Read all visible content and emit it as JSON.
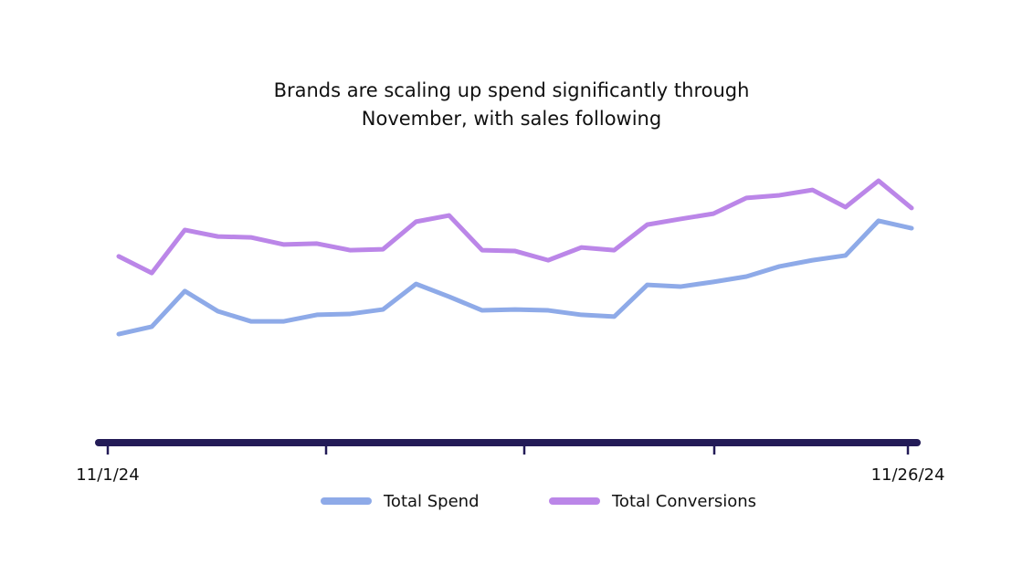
{
  "chart_data": {
    "type": "line",
    "title": "Brands are scaling up spend significantly through\nNovember, with sales following",
    "categories": [
      "11/1/24",
      null,
      null,
      null,
      null,
      null,
      null,
      null,
      null,
      null,
      null,
      null,
      null,
      null,
      null,
      null,
      null,
      null,
      null,
      null,
      null,
      null,
      null,
      null,
      "11/26/24"
    ],
    "series": [
      {
        "name": "Total Spend",
        "color": "#8eaae8",
        "values": [
          36.6,
          39.1,
          51.1,
          44.3,
          40.9,
          40.9,
          43.1,
          43.4,
          44.9,
          53.5,
          49.2,
          44.6,
          44.9,
          44.6,
          43.1,
          42.5,
          53.2,
          52.6,
          54.2,
          56.0,
          59.4,
          61.5,
          63.1,
          74.8,
          72.3
        ]
      },
      {
        "name": "Total Conversions",
        "color": "#bb86e8",
        "values": [
          62.8,
          57.2,
          71.7,
          69.5,
          69.2,
          66.8,
          67.1,
          64.9,
          65.2,
          74.5,
          76.6,
          64.9,
          64.6,
          61.5,
          65.8,
          64.9,
          73.5,
          75.4,
          77.2,
          82.5,
          83.4,
          85.2,
          79.4,
          88.3,
          79.1
        ]
      }
    ],
    "ylim": [
      0,
      100
    ],
    "legend": "bottom"
  }
}
